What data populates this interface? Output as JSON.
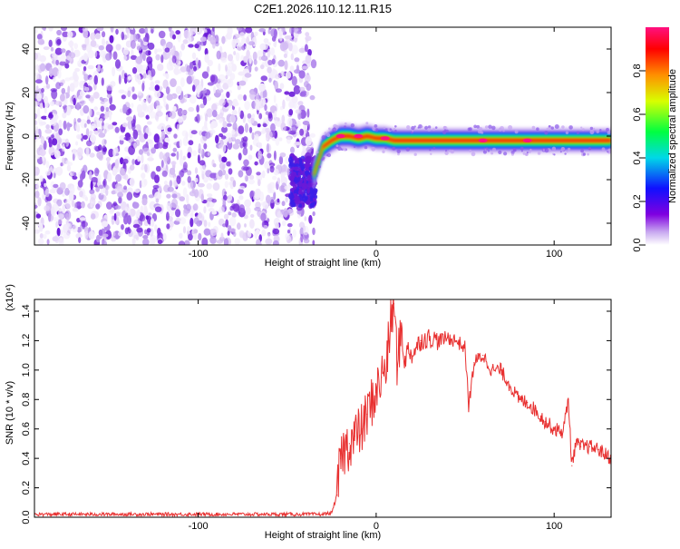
{
  "page_title": "C2E1.2026.110.12.11.R15",
  "chart_data": [
    {
      "type": "heatmap",
      "xlabel": "Height of straight line (km)",
      "ylabel": "Frequency (Hz)",
      "xlim": [
        -192,
        132
      ],
      "ylim": [
        -50,
        50
      ],
      "xticks": [
        -100,
        0,
        100
      ],
      "yticks": [
        -40,
        -20,
        0,
        20,
        40
      ],
      "noise_region_x": [
        -192,
        -35
      ],
      "signal_centerline": {
        "x": [
          -35,
          -30,
          -25,
          -20,
          -15,
          -10,
          -5,
          0,
          5,
          10,
          20,
          40,
          60,
          80,
          100,
          110,
          120,
          132
        ],
        "y": [
          -18,
          -5,
          -2,
          0,
          0,
          -1,
          0,
          -1,
          -1,
          -2,
          -2,
          -2,
          -2,
          -2,
          -2,
          -2,
          -2,
          -2
        ]
      },
      "grid": false,
      "colorbar": {
        "label": "Normalized spectral amplitude",
        "range": [
          0,
          1
        ],
        "ticks": [
          0.0,
          0.2,
          0.4,
          0.6,
          0.8
        ],
        "colors": [
          "#ffffff",
          "#c8a8f0",
          "#8000e0",
          "#1010ff",
          "#00d8e8",
          "#00ff40",
          "#d8ff00",
          "#ff9000",
          "#ff0000",
          "#ff1080"
        ]
      }
    },
    {
      "type": "line",
      "xlabel": "Height of straight line (km)",
      "ylabel": "SNR (10 * v/v)",
      "yscale_label": "(x10⁴)",
      "xlim": [
        -192,
        132
      ],
      "ylim": [
        0,
        1.48
      ],
      "xticks": [
        -100,
        0,
        100
      ],
      "yticks": [
        0.0,
        0.2,
        0.4,
        0.6,
        0.8,
        1.0,
        1.2,
        1.4
      ],
      "grid": false,
      "series": [
        {
          "color": "#e83030",
          "x": [
            -192,
            -150,
            -100,
            -60,
            -30,
            -25,
            -22,
            -20,
            -18,
            -15,
            -12,
            -8,
            -5,
            -2,
            0,
            3,
            6,
            8,
            10,
            12,
            14,
            16,
            18,
            20,
            25,
            30,
            35,
            40,
            45,
            50,
            52,
            55,
            60,
            65,
            70,
            75,
            80,
            85,
            90,
            95,
            100,
            105,
            108,
            110,
            112,
            115,
            120,
            125,
            132
          ],
          "y": [
            0.02,
            0.02,
            0.02,
            0.02,
            0.02,
            0.03,
            0.15,
            0.4,
            0.45,
            0.5,
            0.55,
            0.6,
            0.7,
            0.8,
            0.85,
            0.95,
            1.05,
            1.3,
            1.45,
            1.0,
            1.3,
            1.05,
            1.15,
            1.1,
            1.2,
            1.22,
            1.2,
            1.22,
            1.2,
            1.15,
            0.75,
            1.05,
            1.1,
            1.0,
            1.0,
            0.9,
            0.8,
            0.78,
            0.72,
            0.65,
            0.6,
            0.58,
            0.8,
            0.35,
            0.5,
            0.48,
            0.48,
            0.46,
            0.4
          ]
        }
      ]
    }
  ]
}
